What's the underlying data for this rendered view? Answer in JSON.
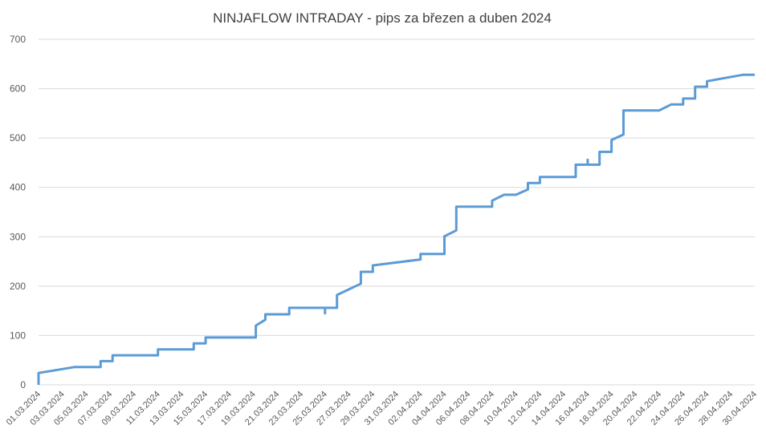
{
  "chart_data": {
    "type": "line",
    "title": "NINJAFLOW INTRADAY - pips za březen a duben 2024",
    "xlabel": "",
    "ylabel": "",
    "ylim": [
      0,
      700
    ],
    "yticks": [
      "0",
      "100",
      "200",
      "300",
      "400",
      "500",
      "600",
      "700"
    ],
    "xticks": [
      "01.03.2024",
      "03.03.2024",
      "05.03.2024",
      "07.03.2024",
      "09.03.2024",
      "11.03.2024",
      "13.03.2024",
      "15.03.2024",
      "17.03.2024",
      "19.03.2024",
      "21.03.2024",
      "23.03.2024",
      "25.03.2024",
      "27.03.2024",
      "29.03.2024",
      "31.03.2024",
      "02.04.2024",
      "04.04.2024",
      "06.04.2024",
      "08.04.2024",
      "10.04.2024",
      "12.04.2024",
      "14.04.2024",
      "16.04.2024",
      "18.04.2024",
      "20.04.2024",
      "22.04.2024",
      "24.04.2024",
      "26.04.2024",
      "28.04.2024",
      "30.04.2024"
    ],
    "grid": true,
    "line_color": "#5B9BD5",
    "series": [
      {
        "name": "",
        "points": [
          [
            0,
            0
          ],
          [
            0,
            24
          ],
          [
            1.5,
            36
          ],
          [
            2.6,
            36
          ],
          [
            2.6,
            48
          ],
          [
            3.1,
            48
          ],
          [
            3.1,
            60
          ],
          [
            5.0,
            60
          ],
          [
            5.0,
            72
          ],
          [
            6.5,
            72
          ],
          [
            6.5,
            84
          ],
          [
            7.0,
            84
          ],
          [
            7.0,
            96
          ],
          [
            9.1,
            96
          ],
          [
            9.1,
            120
          ],
          [
            9.5,
            132
          ],
          [
            9.5,
            143
          ],
          [
            10.5,
            143
          ],
          [
            10.5,
            156
          ],
          [
            12.0,
            156
          ],
          [
            12.0,
            145
          ],
          [
            12.0,
            156
          ],
          [
            12.5,
            156
          ],
          [
            12.5,
            182
          ],
          [
            13.5,
            205
          ],
          [
            13.5,
            229
          ],
          [
            14.0,
            229
          ],
          [
            14.0,
            242
          ],
          [
            16.0,
            254
          ],
          [
            16.0,
            265
          ],
          [
            17.0,
            265
          ],
          [
            17.0,
            301
          ],
          [
            17.5,
            313
          ],
          [
            17.5,
            361
          ],
          [
            19.0,
            361
          ],
          [
            19.0,
            373
          ],
          [
            19.5,
            385
          ],
          [
            20.0,
            385
          ],
          [
            20.5,
            396
          ],
          [
            20.5,
            409
          ],
          [
            21.0,
            409
          ],
          [
            21.0,
            421
          ],
          [
            22.5,
            421
          ],
          [
            22.5,
            446
          ],
          [
            23.0,
            446
          ],
          [
            23.0,
            456
          ],
          [
            23.0,
            446
          ],
          [
            23.5,
            446
          ],
          [
            23.5,
            472
          ],
          [
            24.0,
            472
          ],
          [
            24.0,
            496
          ],
          [
            24.5,
            507
          ],
          [
            24.5,
            556
          ],
          [
            26.0,
            556
          ],
          [
            26.5,
            568
          ],
          [
            27.0,
            568
          ],
          [
            27.0,
            580
          ],
          [
            27.5,
            580
          ],
          [
            27.5,
            604
          ],
          [
            28.0,
            604
          ],
          [
            28.0,
            615
          ],
          [
            29.5,
            628
          ],
          [
            30.0,
            628
          ]
        ]
      }
    ]
  }
}
